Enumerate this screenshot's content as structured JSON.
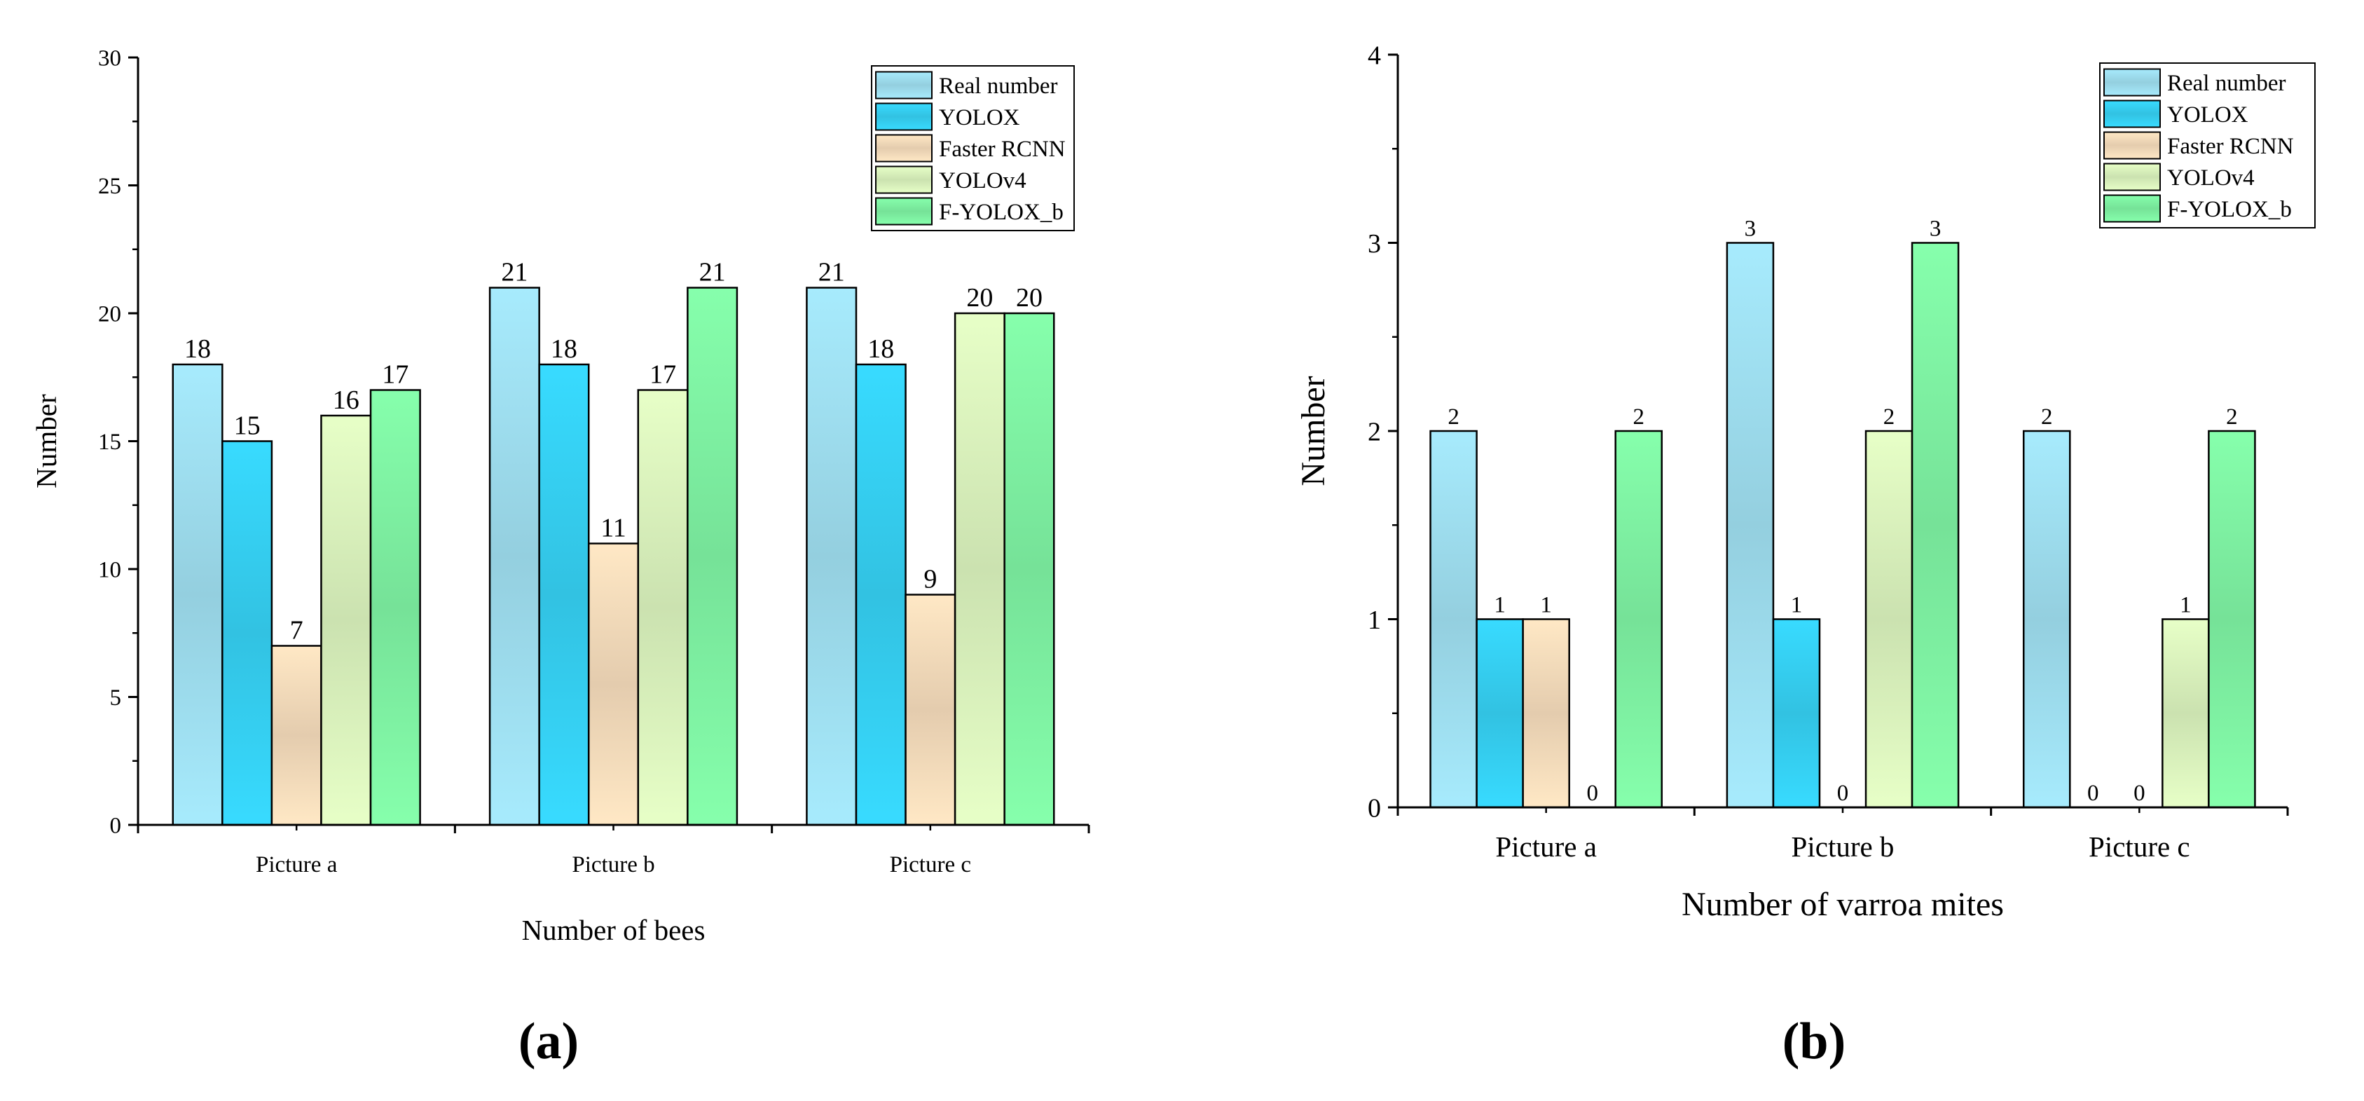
{
  "series_names": [
    "Real number",
    "YOLOX",
    "Faster RCNN",
    "YOLOv4",
    "F-YOLOX_b"
  ],
  "series_colors": [
    "#a4e6f8",
    "#37d7fb",
    "#fde3c1",
    "#e2fbc3",
    "#83fba9"
  ],
  "chart_data": [
    {
      "type": "bar",
      "panel_label": "(a)",
      "title": "",
      "xlabel": "Number of bees",
      "ylabel": "Number",
      "ylim": [
        0,
        30
      ],
      "yticks": [
        0,
        5,
        10,
        15,
        20,
        25,
        30
      ],
      "ytick_labels": [
        "0",
        "5",
        "10",
        "15",
        "20",
        "25",
        "30"
      ],
      "categories": [
        "Picture a",
        "Picture b",
        "Picture c"
      ],
      "legend_position": "top-right",
      "series": [
        {
          "name": "Real number",
          "values": [
            18,
            21,
            21
          ],
          "labels": [
            "18",
            "21",
            "21"
          ]
        },
        {
          "name": "YOLOX",
          "values": [
            15,
            18,
            18
          ],
          "labels": [
            "15",
            "18",
            "18"
          ]
        },
        {
          "name": "Faster RCNN",
          "values": [
            7,
            11,
            9
          ],
          "labels": [
            "7",
            "11",
            "9"
          ]
        },
        {
          "name": "YOLOv4",
          "values": [
            16,
            17,
            20
          ],
          "labels": [
            "16",
            "17",
            "20"
          ]
        },
        {
          "name": "F-YOLOX_b",
          "values": [
            17,
            21,
            20
          ],
          "labels": [
            "17",
            "21",
            "20"
          ]
        }
      ]
    },
    {
      "type": "bar",
      "panel_label": "(b)",
      "title": "",
      "xlabel": "Number of varroa mites",
      "ylabel": "Number",
      "ylim": [
        0,
        4
      ],
      "yticks": [
        0,
        1,
        2,
        3,
        4
      ],
      "ytick_labels": [
        "0",
        "1",
        "2",
        "3",
        "4"
      ],
      "categories": [
        "Picture a",
        "Picture b",
        "Picture c"
      ],
      "legend_position": "top-right",
      "series": [
        {
          "name": "Real number",
          "values": [
            2,
            3,
            2
          ],
          "labels": [
            "2",
            "3",
            "2"
          ]
        },
        {
          "name": "YOLOX",
          "values": [
            1,
            1,
            0
          ],
          "labels": [
            "1",
            "1",
            "0"
          ]
        },
        {
          "name": "Faster RCNN",
          "values": [
            1,
            0,
            0
          ],
          "labels": [
            "1",
            "0",
            "0"
          ]
        },
        {
          "name": "YOLOv4",
          "values": [
            0,
            2,
            1
          ],
          "labels": [
            "0",
            "2",
            "1"
          ]
        },
        {
          "name": "F-YOLOX_b",
          "values": [
            2,
            3,
            2
          ],
          "labels": [
            "2",
            "3",
            "2"
          ]
        }
      ]
    }
  ]
}
